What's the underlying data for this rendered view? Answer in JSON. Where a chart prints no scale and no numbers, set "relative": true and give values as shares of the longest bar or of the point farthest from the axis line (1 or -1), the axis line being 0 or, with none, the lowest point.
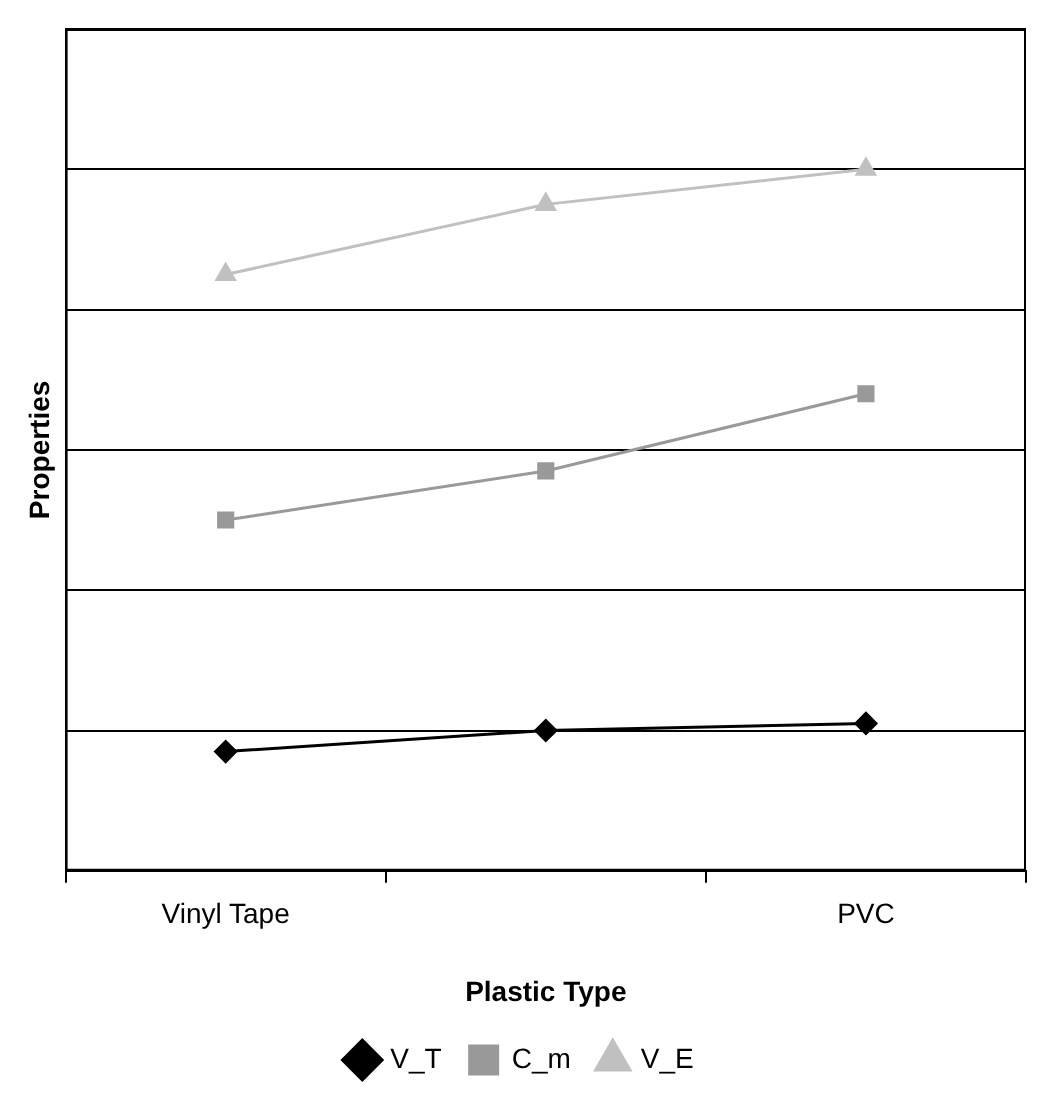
{
  "chart_data": {
    "type": "line",
    "relative": true,
    "xlabel": "Plastic Type",
    "ylabel": "Properties",
    "categories": [
      "Vinyl Tape",
      null,
      "PVC"
    ],
    "series": [
      {
        "name": "V_T",
        "color": "#000000",
        "marker": "diamond",
        "values": [
          0.17,
          0.2,
          0.21
        ]
      },
      {
        "name": "C_m",
        "color": "#999999",
        "marker": "square",
        "values": [
          0.5,
          0.57,
          0.68
        ]
      },
      {
        "name": "V_E",
        "color": "#c0c0c0",
        "marker": "triangle",
        "values": [
          0.85,
          0.95,
          1
        ]
      }
    ],
    "grid": "y",
    "legend": "bottom",
    "line_style": "solid"
  }
}
